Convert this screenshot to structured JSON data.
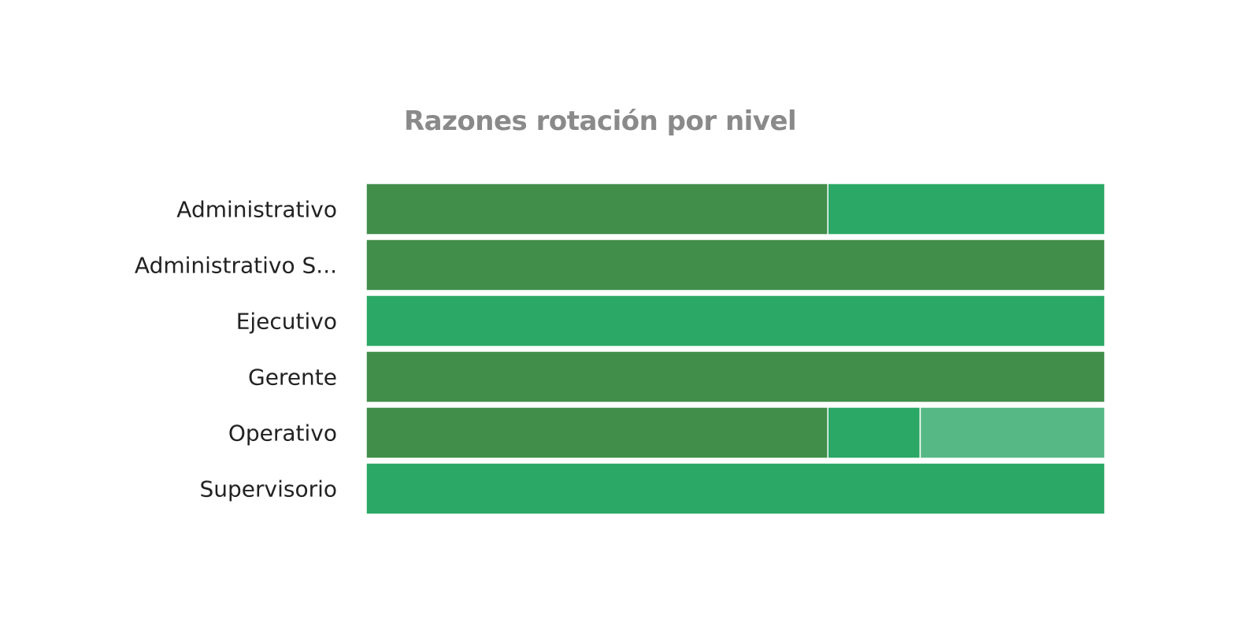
{
  "chart_data": {
    "type": "bar",
    "orientation": "horizontal",
    "stacking": "percent",
    "title": "Razones rotación por nivel",
    "xlabel": "",
    "ylabel": "",
    "xlim": [
      0,
      100
    ],
    "categories": [
      "Administrativo",
      "Administrativo S...",
      "Ejecutivo",
      "Gerente",
      "Operativo",
      "Supervisorio"
    ],
    "series": [
      {
        "color": "#418e4a",
        "values": [
          62.5,
          100,
          0,
          100,
          62.5,
          0
        ]
      },
      {
        "color": "#2ba866",
        "values": [
          37.5,
          0,
          100,
          0,
          12.5,
          100
        ]
      },
      {
        "color": "#56b985",
        "values": [
          0,
          0,
          0,
          0,
          25,
          0
        ]
      }
    ],
    "legend": "none",
    "grid": false
  }
}
